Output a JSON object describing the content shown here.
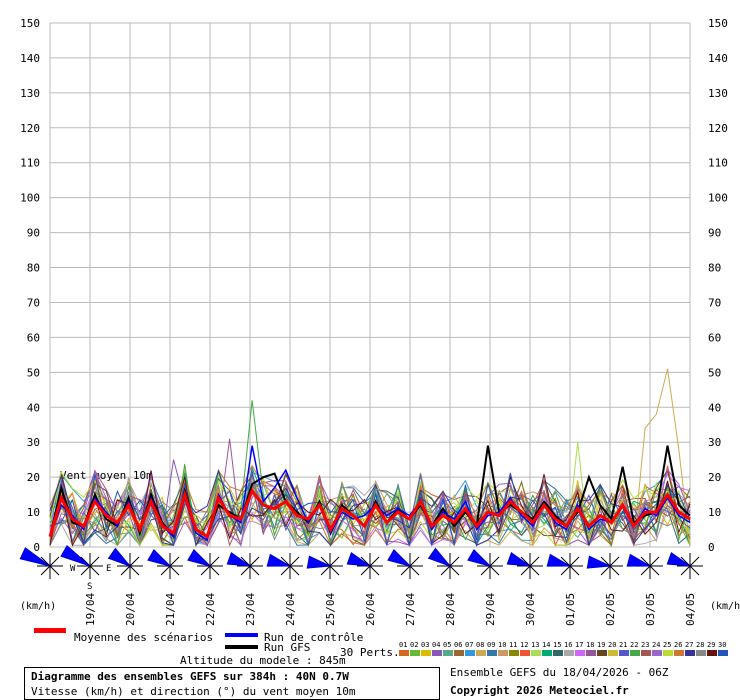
{
  "chart_data": {
    "type": "line",
    "yunit": "(km/h)",
    "ylim": [
      0,
      150
    ],
    "yticks": [
      0,
      10,
      20,
      30,
      40,
      50,
      60,
      70,
      80,
      90,
      100,
      110,
      120,
      130,
      140,
      150
    ],
    "grid": true,
    "xlabels": [
      "19/04",
      "20/04",
      "21/04",
      "22/04",
      "23/04",
      "24/04",
      "25/04",
      "26/04",
      "27/04",
      "28/04",
      "29/04",
      "30/04",
      "01/05",
      "02/05",
      "03/05",
      "04/05"
    ],
    "inner_label": "Vent moyen 10m",
    "wind_rose_labels": {
      "w": "W",
      "e": "E",
      "s": "S"
    },
    "mean_series": {
      "name": "Moyenne des scénarios",
      "color": "#ff0000",
      "values": [
        3,
        14,
        8,
        6,
        13,
        9,
        7,
        12,
        5,
        13,
        6,
        4,
        15,
        5,
        3,
        14,
        9,
        8,
        16,
        12,
        11,
        13,
        9,
        8,
        12,
        5,
        11,
        9,
        6,
        12,
        7,
        10,
        8,
        13,
        6,
        9,
        7,
        11,
        6,
        10,
        9,
        13,
        10,
        7,
        12,
        8,
        6,
        11,
        6,
        9,
        7,
        12,
        6,
        10,
        10,
        15,
        10,
        8
      ]
    },
    "control_series": {
      "name": "Run de contrôle",
      "color": "#0000ff",
      "values": [
        3,
        12,
        9,
        5,
        14,
        10,
        6,
        13,
        5,
        14,
        6,
        3,
        14,
        4,
        2,
        15,
        9,
        7,
        29,
        13,
        17,
        22,
        14,
        7,
        12,
        4,
        10,
        8,
        9,
        12,
        9,
        11,
        9,
        13,
        5,
        10,
        8,
        13,
        5,
        9,
        10,
        14,
        9,
        6,
        12,
        7,
        5,
        12,
        5,
        8,
        7,
        12,
        6,
        11,
        9,
        14,
        9,
        7
      ]
    },
    "gfs_series": {
      "name": "Run GFS",
      "color": "#000000",
      "values": [
        3,
        17,
        7,
        6,
        15,
        8,
        6,
        14,
        4,
        15,
        7,
        3,
        16,
        5,
        3,
        12,
        10,
        8,
        18,
        20,
        21,
        13,
        10,
        7,
        13,
        4,
        12,
        9,
        6,
        13,
        7,
        11,
        8,
        12,
        6,
        11,
        6,
        10,
        6,
        29,
        10,
        12,
        10,
        8,
        13,
        9,
        6,
        10,
        20,
        12,
        8,
        23,
        7,
        9,
        10,
        29,
        12,
        9
      ]
    },
    "perturbations": {
      "label": "30 Perts.",
      "colors": [
        "#d2691e",
        "#66bb33",
        "#ddbb00",
        "#8855bb",
        "#55aa88",
        "#996633",
        "#3399dd",
        "#ccaa55",
        "#3377aa",
        "#cc9966",
        "#888800",
        "#ee5533",
        "#aadd55",
        "#00aa77",
        "#336666",
        "#aaaaaa",
        "#cc66ff",
        "#995599",
        "#664422",
        "#ccbb33",
        "#5555cc",
        "#44aa44",
        "#aa5555",
        "#9966cc",
        "#bbdd33",
        "#cc7733",
        "#333399",
        "#888888",
        "#661111",
        "#2255bb"
      ],
      "codes": [
        "01",
        "02",
        "03",
        "04",
        "05",
        "06",
        "07",
        "08",
        "09",
        "10",
        "11",
        "12",
        "13",
        "14",
        "15",
        "16",
        "17",
        "18",
        "19",
        "20",
        "21",
        "22",
        "23",
        "24",
        "25",
        "26",
        "27",
        "28",
        "29",
        "30"
      ],
      "spikes": [
        {
          "member": 21,
          "index": 18,
          "value": 42
        },
        {
          "member": 7,
          "index": 53,
          "value": 34
        },
        {
          "member": 7,
          "index": 54,
          "value": 38
        },
        {
          "member": 7,
          "index": 55,
          "value": 51
        },
        {
          "member": 7,
          "index": 56,
          "value": 28
        },
        {
          "member": 3,
          "index": 11,
          "value": 25
        },
        {
          "member": 17,
          "index": 16,
          "value": 31
        },
        {
          "member": 12,
          "index": 47,
          "value": 30
        }
      ]
    },
    "wind_directions_deg": [
      295,
      300,
      305,
      300,
      300,
      290,
      285,
      280,
      290,
      300,
      305,
      300,
      290,
      285,
      280,
      285,
      290
    ]
  },
  "footer": {
    "altitude": "Altitude du modele : 845m",
    "title": "Diagramme des ensembles GEFS sur 384h : 40N 0.7W",
    "subtitle": "Vitesse (km/h) et direction (°) du vent moyen 10m",
    "ensemble": "Ensemble GEFS du 18/04/2026 - 06Z",
    "copyright": "Copyright 2026 Meteociel.fr"
  }
}
